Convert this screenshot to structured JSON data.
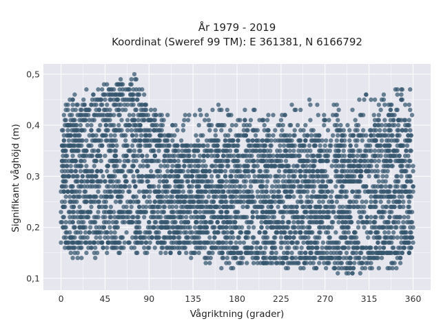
{
  "chart_data": {
    "type": "scatter",
    "title_lines": [
      "År 1979 - 2019",
      "Koordinat (Sweref 99 TM): E 361381, N 6166792"
    ],
    "xlabel": "Vågriktning (grader)",
    "ylabel": "Signifikant våghöjd (m)",
    "xlim": [
      -18,
      378
    ],
    "ylim": [
      0.077,
      0.52
    ],
    "xticks": [
      0,
      45,
      90,
      135,
      180,
      225,
      270,
      315,
      360
    ],
    "xtick_labels": [
      "0",
      "45",
      "90",
      "135",
      "180",
      "225",
      "270",
      "315",
      "360"
    ],
    "yticks": [
      0.1,
      0.2,
      0.3,
      0.4,
      0.5
    ],
    "ytick_labels": [
      "0,1",
      "0,2",
      "0,3",
      "0,4",
      "0,5"
    ],
    "grid": true,
    "legend": "none",
    "point_color": "#34566e",
    "plot_background": "#e6e6ef",
    "envelope": {
      "x": [
        0,
        15,
        30,
        45,
        60,
        75,
        90,
        105,
        120,
        135,
        150,
        165,
        180,
        195,
        210,
        225,
        240,
        255,
        270,
        285,
        300,
        315,
        330,
        345,
        360
      ],
      "y_min": [
        0.15,
        0.14,
        0.14,
        0.15,
        0.15,
        0.15,
        0.15,
        0.15,
        0.15,
        0.13,
        0.13,
        0.12,
        0.12,
        0.12,
        0.12,
        0.12,
        0.12,
        0.12,
        0.12,
        0.11,
        0.11,
        0.12,
        0.12,
        0.12,
        0.14
      ],
      "y_max": [
        0.47,
        0.46,
        0.47,
        0.48,
        0.49,
        0.5,
        0.45,
        0.42,
        0.41,
        0.43,
        0.43,
        0.44,
        0.44,
        0.44,
        0.43,
        0.44,
        0.44,
        0.45,
        0.44,
        0.44,
        0.46,
        0.46,
        0.47,
        0.47,
        0.47
      ],
      "dense_min": [
        0.17,
        0.17,
        0.17,
        0.17,
        0.17,
        0.17,
        0.17,
        0.17,
        0.17,
        0.17,
        0.16,
        0.16,
        0.15,
        0.15,
        0.14,
        0.14,
        0.14,
        0.14,
        0.14,
        0.13,
        0.13,
        0.14,
        0.15,
        0.15,
        0.16
      ],
      "dense_max": [
        0.39,
        0.41,
        0.43,
        0.45,
        0.46,
        0.46,
        0.41,
        0.38,
        0.36,
        0.36,
        0.36,
        0.37,
        0.37,
        0.37,
        0.37,
        0.37,
        0.37,
        0.37,
        0.37,
        0.37,
        0.38,
        0.39,
        0.4,
        0.41,
        0.41
      ]
    },
    "sample_count": 3600
  }
}
